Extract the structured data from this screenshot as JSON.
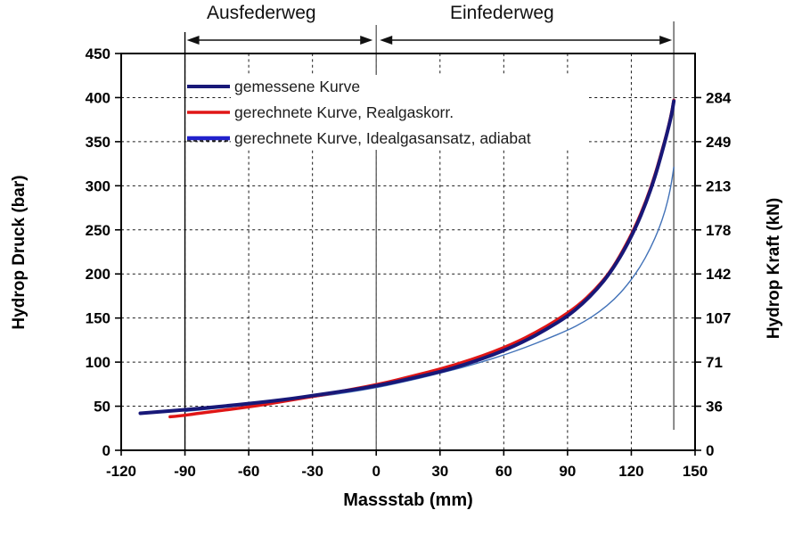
{
  "chart_data": {
    "type": "line",
    "title": "",
    "xlabel": "Massstab (mm)",
    "ylabel_left": "Hydrop Druck (bar)",
    "ylabel_right": "Hydrop Kraft (kN)",
    "xlim": [
      -120,
      150
    ],
    "ylim_left": [
      0,
      450
    ],
    "x_ticks": [
      -120,
      -90,
      -60,
      -30,
      0,
      30,
      60,
      90,
      120,
      150
    ],
    "y_left_ticks": [
      0,
      50,
      100,
      150,
      200,
      250,
      300,
      350,
      400,
      450
    ],
    "y_right_ticks_kN": [
      "0",
      "36",
      "71",
      "107",
      "142",
      "178",
      "213",
      "249",
      "284"
    ],
    "y_right_tick_positions_bar": [
      0,
      50,
      100,
      150,
      200,
      250,
      300,
      350,
      400
    ],
    "grid": "dashed",
    "legend_position": "top-left-inside",
    "annotations": [
      "Ausfederweg",
      "Einfederweg"
    ],
    "annotation_ranges_mm": [
      [
        -90,
        0
      ],
      [
        0,
        140
      ]
    ],
    "marker_lines_x_mm": [
      -90,
      0,
      140
    ],
    "colors": {
      "measured": "#181878",
      "realgas": "#e01616",
      "idealgas_line": "#4272b8",
      "idealgas_legend": "#2121cc",
      "marker_gray": "#6f6f6f",
      "marker_black": "#000000",
      "grid": "#1a1a1a"
    },
    "series": [
      {
        "name": "gemessene Kurve",
        "color": "#181878",
        "width": 4,
        "points": [
          [
            -111,
            42
          ],
          [
            -103,
            43.5
          ],
          [
            -95,
            45
          ],
          [
            -90,
            46
          ],
          [
            -80,
            48
          ],
          [
            -70,
            50.5
          ],
          [
            -60,
            53
          ],
          [
            -50,
            55.5
          ],
          [
            -40,
            58.5
          ],
          [
            -30,
            62
          ],
          [
            -20,
            65.5
          ],
          [
            -10,
            69
          ],
          [
            0,
            73
          ],
          [
            10,
            78
          ],
          [
            20,
            83.5
          ],
          [
            30,
            89
          ],
          [
            40,
            96
          ],
          [
            50,
            104
          ],
          [
            60,
            113
          ],
          [
            70,
            124
          ],
          [
            80,
            137
          ],
          [
            90,
            152
          ],
          [
            97,
            166
          ],
          [
            104,
            183
          ],
          [
            110,
            201
          ],
          [
            116,
            224
          ],
          [
            122,
            252
          ],
          [
            127,
            281
          ],
          [
            131,
            309
          ],
          [
            134,
            334
          ],
          [
            137,
            361
          ],
          [
            139,
            381
          ],
          [
            140,
            396
          ]
        ]
      },
      {
        "name": "gerechnete Kurve, Realgaskorr.",
        "color": "#e01616",
        "width": 3.5,
        "points": [
          [
            -97,
            38
          ],
          [
            -92,
            39
          ],
          [
            -85,
            41.5
          ],
          [
            -75,
            44.5
          ],
          [
            -65,
            47.5
          ],
          [
            -55,
            51
          ],
          [
            -45,
            55
          ],
          [
            -35,
            59
          ],
          [
            -25,
            63
          ],
          [
            -15,
            67.5
          ],
          [
            -5,
            72
          ],
          [
            5,
            77
          ],
          [
            15,
            83
          ],
          [
            25,
            89
          ],
          [
            35,
            95.5
          ],
          [
            45,
            103
          ],
          [
            55,
            111.5
          ],
          [
            65,
            121.5
          ],
          [
            75,
            133.5
          ],
          [
            85,
            147.5
          ],
          [
            95,
            164
          ],
          [
            103,
            182
          ],
          [
            110,
            202
          ],
          [
            116,
            226
          ],
          [
            122,
            254
          ],
          [
            127,
            283
          ],
          [
            131,
            311
          ],
          [
            134,
            336
          ],
          [
            137,
            362
          ],
          [
            139,
            383
          ],
          [
            140,
            397
          ]
        ]
      },
      {
        "name": "gerechnete Kurve, Idealgasansatz, adiabat",
        "color": "#4272b8",
        "legend_color": "#2121cc",
        "width": 1.4,
        "points": [
          [
            -90,
            44
          ],
          [
            -75,
            47.5
          ],
          [
            -60,
            51.5
          ],
          [
            -45,
            55.5
          ],
          [
            -30,
            60
          ],
          [
            -15,
            65
          ],
          [
            0,
            71
          ],
          [
            10,
            76
          ],
          [
            20,
            81.5
          ],
          [
            30,
            87.5
          ],
          [
            40,
            93.5
          ],
          [
            50,
            100.5
          ],
          [
            60,
            108
          ],
          [
            70,
            116.5
          ],
          [
            80,
            126
          ],
          [
            90,
            136
          ],
          [
            98,
            146
          ],
          [
            105,
            157
          ],
          [
            112,
            171
          ],
          [
            118,
            187
          ],
          [
            124,
            207
          ],
          [
            129,
            229
          ],
          [
            133,
            251
          ],
          [
            136,
            272
          ],
          [
            138,
            292
          ],
          [
            139,
            305
          ],
          [
            140,
            321
          ]
        ]
      }
    ]
  }
}
